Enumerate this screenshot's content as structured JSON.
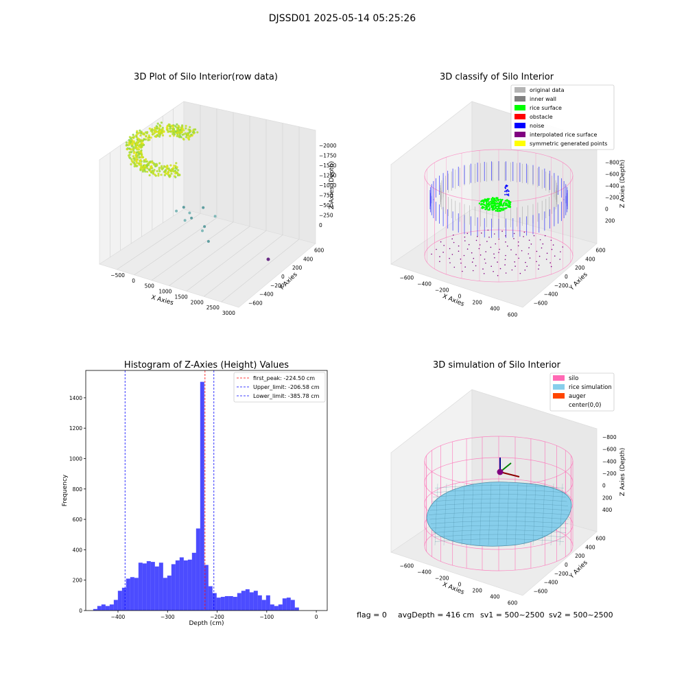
{
  "figure": {
    "suptitle": "DJSSD01 2025-05-14 05:25:26",
    "footer": {
      "flag": "flag = 0",
      "avg_depth": "avgDepth = 416 cm",
      "sv1": "sv1 = 500~2500",
      "sv2": "sv2 = 500~2500"
    }
  },
  "chart_data": [
    {
      "type": "scatter",
      "projection": "3d",
      "title": "3D Plot of Silo Interior(row data)",
      "xlabel": "X Axies",
      "ylabel": "Y Axies",
      "zlabel": "Z Axies (Depth)",
      "x_ticks": [
        "−500",
        "0",
        "500",
        "1000",
        "1500",
        "2000",
        "2500",
        "3000"
      ],
      "y_ticks": [
        "−600",
        "−400",
        "−200",
        "0",
        "200",
        "400",
        "600"
      ],
      "z_ticks": [
        "−2000",
        "−1750",
        "−1500",
        "−1250",
        "−1000",
        "−750",
        "−500",
        "−250",
        "0"
      ],
      "xlim": [
        -600,
        3000
      ],
      "ylim": [
        -600,
        600
      ],
      "zlim": [
        -2100,
        100
      ],
      "colormap": "viridis",
      "outliers": [
        {
          "x": 1050,
          "y": 200,
          "z": -1400
        },
        {
          "x": 1300,
          "y": 150,
          "z": -1250
        },
        {
          "x": 1400,
          "y": 80,
          "z": -1550
        },
        {
          "x": 1600,
          "y": 60,
          "z": -1450
        },
        {
          "x": 1700,
          "y": -100,
          "z": -1300
        },
        {
          "x": 2000,
          "y": -20,
          "z": -1100
        },
        {
          "x": 2100,
          "y": -150,
          "z": -1650
        },
        {
          "x": 2300,
          "y": -300,
          "z": -1500
        },
        {
          "x": 2500,
          "y": -200,
          "z": -1200
        },
        {
          "x": 2600,
          "y": -500,
          "z": -1800
        }
      ]
    },
    {
      "type": "scatter",
      "projection": "3d",
      "title": "3D classify of Silo Interior",
      "xlabel": "X Axies",
      "ylabel": "Y Axies",
      "zlabel": "Z Axies (Depth)",
      "x_ticks": [
        "−600",
        "−400",
        "−200",
        "0",
        "200",
        "400",
        "600"
      ],
      "y_ticks": [
        "−600",
        "−400",
        "−200",
        "0",
        "200",
        "400",
        "600"
      ],
      "z_ticks": [
        "−800",
        "−600",
        "−400",
        "−200",
        "0",
        "200"
      ],
      "legend_position": "top-right",
      "legend": [
        {
          "label": "original data",
          "color": "#b4b4b4"
        },
        {
          "label": "inner wall",
          "color": "#808080"
        },
        {
          "label": "rice surface",
          "color": "#00ff00"
        },
        {
          "label": "obstacle",
          "color": "#ff0000"
        },
        {
          "label": "noise",
          "color": "#0000ff"
        },
        {
          "label": "interpolated rice surface",
          "color": "#800080"
        },
        {
          "label": "symmetric generated points",
          "color": "#ffff00"
        }
      ]
    },
    {
      "type": "bar",
      "subtype": "histogram",
      "title": "Histogram of Z-Axies (Height) Values",
      "xlabel": "Depth (cm)",
      "ylabel": "Frequency",
      "xlim": [
        -465,
        22
      ],
      "ylim": [
        0,
        1580
      ],
      "x_ticks": [
        -400,
        -300,
        -200,
        -100,
        0
      ],
      "x_tick_labels": [
        "−400",
        "−300",
        "−200",
        "−100",
        "0"
      ],
      "y_ticks": [
        0,
        200,
        400,
        600,
        800,
        1000,
        1200,
        1400
      ],
      "bin_start": -450,
      "bin_width": 8.3,
      "values": [
        10,
        30,
        40,
        30,
        40,
        70,
        130,
        150,
        210,
        220,
        215,
        315,
        310,
        325,
        320,
        290,
        315,
        215,
        230,
        305,
        330,
        350,
        330,
        335,
        380,
        540,
        1505,
        300,
        160,
        115,
        85,
        90,
        95,
        95,
        90,
        115,
        130,
        140,
        120,
        130,
        100,
        70,
        100,
        40,
        30,
        40,
        80,
        85,
        70,
        20
      ],
      "bar_color": "#0000ff",
      "vlines": [
        {
          "x": -224.5,
          "color": "#ff0000",
          "label": "first_peak: -224.50 cm"
        },
        {
          "x": -206.58,
          "color": "#0000ff",
          "label": "Upper_limit: -206.58 cm"
        },
        {
          "x": -385.78,
          "color": "#0000ff",
          "label": "Lower_limit: -385.78 cm"
        }
      ],
      "legend_position": "top-right"
    },
    {
      "type": "area",
      "projection": "3d",
      "title": "3D simulation of Silo Interior",
      "xlabel": "X Axies",
      "ylabel": "Y Axies",
      "zlabel": "Z Axies (Depth)",
      "x_ticks": [
        "−600",
        "−400",
        "−200",
        "0",
        "200",
        "400",
        "600"
      ],
      "y_ticks": [
        "−600",
        "−400",
        "−200",
        "0",
        "200",
        "400",
        "600"
      ],
      "z_ticks": [
        "−800",
        "−600",
        "−400",
        "−200",
        "0",
        "200",
        "400"
      ],
      "legend_position": "top-right",
      "legend": [
        {
          "label": "silo",
          "color": "#ff69b4"
        },
        {
          "label": "rice simulation",
          "color": "#87ceeb"
        },
        {
          "label": "auger",
          "color": "#ff4500"
        },
        {
          "label": "center(0,0)",
          "color": "#ffffff"
        }
      ]
    }
  ]
}
